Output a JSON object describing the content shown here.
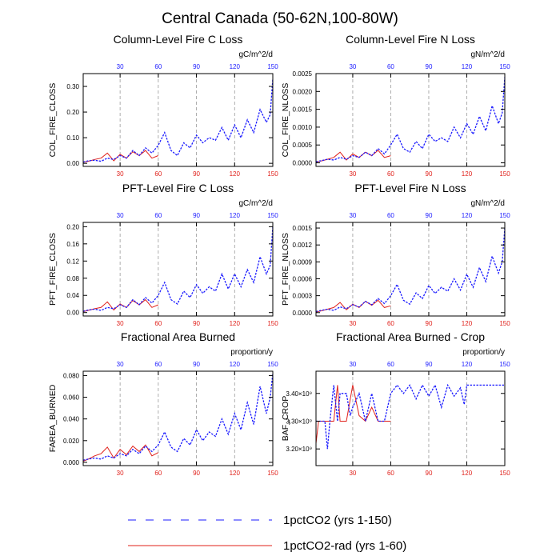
{
  "page": {
    "title": "Central Canada (50-62N,100-80W)"
  },
  "legend": [
    {
      "label": "1pctCO2 (yrs 1-150)",
      "color": "#1a1aff",
      "dash": "dashed"
    },
    {
      "label": "1pctCO2-rad (yrs 1-60)",
      "color": "#e0201a",
      "dash": "solid"
    }
  ],
  "chart_data": [
    {
      "type": "line",
      "title": "Column-Level Fire C Loss",
      "ylabel": "COL_FIRE_CLOSS",
      "units": "gC/m^2/d",
      "xlim": [
        1,
        150
      ],
      "xticks": [
        30,
        60,
        90,
        120,
        150
      ],
      "ylim": [
        -0.012,
        0.35
      ],
      "yticks": [
        0.0,
        0.1,
        0.2,
        0.3
      ],
      "ytick_labels": [
        "0.00",
        "0.10",
        "0.20",
        "0.30"
      ],
      "series": [
        {
          "name": "1pctCO2 (yrs 1-150)",
          "color": "#1a1aff",
          "line": "dashed",
          "x": [
            1,
            5,
            10,
            15,
            20,
            25,
            30,
            35,
            40,
            45,
            50,
            55,
            60,
            65,
            70,
            75,
            80,
            85,
            90,
            95,
            100,
            105,
            110,
            115,
            120,
            125,
            130,
            135,
            140,
            145,
            148,
            150
          ],
          "y": [
            0.005,
            0.01,
            0.012,
            0.008,
            0.02,
            0.015,
            0.03,
            0.02,
            0.05,
            0.03,
            0.06,
            0.04,
            0.07,
            0.12,
            0.05,
            0.03,
            0.08,
            0.06,
            0.11,
            0.08,
            0.1,
            0.09,
            0.14,
            0.09,
            0.15,
            0.1,
            0.17,
            0.12,
            0.21,
            0.16,
            0.19,
            0.33
          ]
        },
        {
          "name": "1pctCO2-rad (yrs 1-60)",
          "color": "#e0201a",
          "line": "solid",
          "x": [
            1,
            5,
            10,
            15,
            20,
            25,
            30,
            35,
            40,
            45,
            50,
            55,
            60
          ],
          "y": [
            0.004,
            0.008,
            0.015,
            0.02,
            0.04,
            0.01,
            0.035,
            0.02,
            0.045,
            0.03,
            0.05,
            0.02,
            0.03
          ]
        }
      ]
    },
    {
      "type": "line",
      "title": "Column-Level Fire N Loss",
      "ylabel": "COL_FIRE_NLOSS",
      "units": "gN/m^2/d",
      "xlim": [
        1,
        150
      ],
      "xticks": [
        30,
        60,
        90,
        120,
        150
      ],
      "ylim": [
        -0.0001,
        0.0025
      ],
      "yticks": [
        0.0,
        0.0005,
        0.001,
        0.0015,
        0.002,
        0.0025
      ],
      "ytick_labels": [
        "0.0000",
        "0.0005",
        "0.0010",
        "0.0015",
        "0.0020",
        "0.0025"
      ],
      "series": [
        {
          "name": "1pctCO2 (yrs 1-150)",
          "color": "#1a1aff",
          "line": "dashed",
          "x": [
            1,
            5,
            10,
            15,
            20,
            25,
            30,
            35,
            40,
            45,
            50,
            55,
            60,
            65,
            70,
            75,
            80,
            85,
            90,
            95,
            100,
            105,
            110,
            115,
            120,
            125,
            130,
            135,
            140,
            145,
            148,
            150
          ],
          "y": [
            3e-05,
            6e-05,
            0.0001,
            8e-05,
            0.00015,
            0.0001,
            0.0002,
            0.00015,
            0.0003,
            0.0002,
            0.0004,
            0.00025,
            0.0005,
            0.0008,
            0.0004,
            0.0003,
            0.0006,
            0.0004,
            0.0008,
            0.0006,
            0.0007,
            0.0006,
            0.001,
            0.0007,
            0.0011,
            0.0008,
            0.0013,
            0.0009,
            0.0016,
            0.0011,
            0.0014,
            0.0024
          ]
        },
        {
          "name": "1pctCO2-rad (yrs 1-60)",
          "color": "#e0201a",
          "line": "solid",
          "x": [
            1,
            5,
            10,
            15,
            20,
            25,
            30,
            35,
            40,
            45,
            50,
            55,
            60
          ],
          "y": [
            2e-05,
            5e-05,
            0.0001,
            0.00015,
            0.0003,
            8e-05,
            0.00025,
            0.00015,
            0.0003,
            0.0002,
            0.00035,
            0.00015,
            0.0002
          ]
        }
      ]
    },
    {
      "type": "line",
      "title": "PFT-Level Fire C Loss",
      "ylabel": "PFT_FIRE_CLOSS",
      "units": "gC/m^2/d",
      "xlim": [
        1,
        150
      ],
      "xticks": [
        30,
        60,
        90,
        120,
        150
      ],
      "ylim": [
        -0.008,
        0.21
      ],
      "yticks": [
        0.0,
        0.04,
        0.08,
        0.12,
        0.16,
        0.2
      ],
      "ytick_labels": [
        "0.00",
        "0.04",
        "0.08",
        "0.12",
        "0.16",
        "0.20"
      ],
      "series": [
        {
          "name": "1pctCO2 (yrs 1-150)",
          "color": "#1a1aff",
          "line": "dashed",
          "x": [
            1,
            5,
            10,
            15,
            20,
            25,
            30,
            35,
            40,
            45,
            50,
            55,
            60,
            65,
            70,
            75,
            80,
            85,
            90,
            95,
            100,
            105,
            110,
            115,
            120,
            125,
            130,
            135,
            140,
            145,
            148,
            150
          ],
          "y": [
            0.003,
            0.006,
            0.008,
            0.005,
            0.012,
            0.009,
            0.018,
            0.012,
            0.03,
            0.018,
            0.035,
            0.022,
            0.04,
            0.07,
            0.03,
            0.02,
            0.05,
            0.035,
            0.065,
            0.045,
            0.06,
            0.05,
            0.09,
            0.055,
            0.09,
            0.06,
            0.1,
            0.07,
            0.13,
            0.09,
            0.11,
            0.2
          ]
        },
        {
          "name": "1pctCO2-rad (yrs 1-60)",
          "color": "#e0201a",
          "line": "solid",
          "x": [
            1,
            5,
            10,
            15,
            20,
            25,
            30,
            35,
            40,
            45,
            50,
            55,
            60
          ],
          "y": [
            0.002,
            0.005,
            0.009,
            0.012,
            0.025,
            0.006,
            0.02,
            0.012,
            0.028,
            0.018,
            0.03,
            0.012,
            0.018
          ]
        }
      ]
    },
    {
      "type": "line",
      "title": "PFT-Level Fire N Loss",
      "ylabel": "PFT_FIRE_NLOSS",
      "units": "gN/m^2/d",
      "xlim": [
        1,
        150
      ],
      "xticks": [
        30,
        60,
        90,
        120,
        150
      ],
      "ylim": [
        -6e-05,
        0.0016
      ],
      "yticks": [
        0.0,
        0.0003,
        0.0006,
        0.0009,
        0.0012,
        0.0015
      ],
      "ytick_labels": [
        "0.0000",
        "0.0003",
        "0.0006",
        "0.0009",
        "0.0012",
        "0.0015"
      ],
      "series": [
        {
          "name": "1pctCO2 (yrs 1-150)",
          "color": "#1a1aff",
          "line": "dashed",
          "x": [
            1,
            5,
            10,
            15,
            20,
            25,
            30,
            35,
            40,
            45,
            50,
            55,
            60,
            65,
            70,
            75,
            80,
            85,
            90,
            95,
            100,
            105,
            110,
            115,
            120,
            125,
            130,
            135,
            140,
            145,
            148,
            150
          ],
          "y": [
            2e-05,
            4e-05,
            6e-05,
            4e-05,
            0.0001,
            7e-05,
            0.00014,
            0.0001,
            0.0002,
            0.00014,
            0.00025,
            0.00016,
            0.0003,
            0.0005,
            0.00022,
            0.00015,
            0.00035,
            0.00025,
            0.00048,
            0.00034,
            0.00045,
            0.00038,
            0.0006,
            0.0004,
            0.00068,
            0.00045,
            0.0008,
            0.00055,
            0.001,
            0.0007,
            0.0009,
            0.0015
          ]
        },
        {
          "name": "1pctCO2-rad (yrs 1-60)",
          "color": "#e0201a",
          "line": "solid",
          "x": [
            1,
            5,
            10,
            15,
            20,
            25,
            30,
            35,
            40,
            45,
            50,
            55,
            60
          ],
          "y": [
            1e-05,
            3e-05,
            6e-05,
            9e-05,
            0.00018,
            5e-05,
            0.00015,
            9e-05,
            0.0002,
            0.00013,
            0.00022,
            9e-05,
            0.00012
          ]
        }
      ]
    },
    {
      "type": "line",
      "title": "Fractional Area Burned",
      "ylabel": "FAREA_BURNED",
      "units": "proportion/y",
      "xlim": [
        1,
        150
      ],
      "xticks": [
        30,
        60,
        90,
        120,
        150
      ],
      "ylim": [
        -0.003,
        0.084
      ],
      "yticks": [
        0.0,
        0.02,
        0.04,
        0.06,
        0.08
      ],
      "ytick_labels": [
        "0.000",
        "0.020",
        "0.040",
        "0.060",
        "0.080"
      ],
      "series": [
        {
          "name": "1pctCO2 (yrs 1-150)",
          "color": "#1a1aff",
          "line": "dashed",
          "x": [
            1,
            5,
            10,
            15,
            20,
            25,
            30,
            35,
            40,
            45,
            50,
            55,
            60,
            65,
            70,
            75,
            80,
            85,
            90,
            95,
            100,
            105,
            110,
            115,
            120,
            125,
            130,
            135,
            140,
            145,
            148,
            150
          ],
          "y": [
            0.002,
            0.003,
            0.004,
            0.003,
            0.006,
            0.004,
            0.008,
            0.006,
            0.012,
            0.008,
            0.015,
            0.01,
            0.016,
            0.028,
            0.014,
            0.01,
            0.022,
            0.016,
            0.03,
            0.02,
            0.028,
            0.024,
            0.04,
            0.026,
            0.045,
            0.03,
            0.055,
            0.035,
            0.07,
            0.045,
            0.06,
            0.082
          ]
        },
        {
          "name": "1pctCO2-rad (yrs 1-60)",
          "color": "#e0201a",
          "line": "solid",
          "x": [
            1,
            5,
            10,
            15,
            20,
            25,
            30,
            35,
            40,
            45,
            50,
            55,
            60
          ],
          "y": [
            0.001,
            0.003,
            0.006,
            0.008,
            0.014,
            0.004,
            0.012,
            0.007,
            0.015,
            0.01,
            0.016,
            0.006,
            0.009
          ]
        }
      ]
    },
    {
      "type": "line",
      "title": "Fractional Area Burned - Crop",
      "ylabel": "BAF_CROP",
      "units": "proportion/y",
      "xlim": [
        1,
        150
      ],
      "xticks": [
        30,
        60,
        90,
        120,
        150
      ],
      "ylim": [
        3140000000.0,
        3480000000.0
      ],
      "yticks": [
        3200000000.0,
        3300000000.0,
        3400000000.0
      ],
      "ytick_labels": [
        "3.20×10⁹",
        "3.30×10⁹",
        "3.40×10⁹"
      ],
      "series": [
        {
          "name": "1pctCO2 (yrs 1-150)",
          "color": "#1a1aff",
          "line": "dashed",
          "x": [
            1,
            5,
            8,
            10,
            12,
            15,
            18,
            20,
            25,
            28,
            30,
            35,
            40,
            45,
            50,
            55,
            60,
            65,
            70,
            75,
            80,
            85,
            90,
            95,
            100,
            105,
            110,
            115,
            118,
            120,
            125,
            130,
            140,
            150
          ],
          "y": [
            3300000000.0,
            3300000000.0,
            3300000000.0,
            3200000000.0,
            3300000000.0,
            3430000000.0,
            3300000000.0,
            3400000000.0,
            3400000000.0,
            3320000000.0,
            3350000000.0,
            3400000000.0,
            3300000000.0,
            3400000000.0,
            3300000000.0,
            3300000000.0,
            3400000000.0,
            3430000000.0,
            3400000000.0,
            3430000000.0,
            3380000000.0,
            3430000000.0,
            3390000000.0,
            3430000000.0,
            3350000000.0,
            3430000000.0,
            3390000000.0,
            3420000000.0,
            3360000000.0,
            3430000000.0,
            3430000000.0,
            3430000000.0,
            3430000000.0,
            3430000000.0
          ]
        },
        {
          "name": "1pctCO2-rad (yrs 1-60)",
          "color": "#e0201a",
          "line": "solid",
          "x": [
            1,
            3,
            5,
            10,
            15,
            18,
            20,
            25,
            30,
            35,
            40,
            45,
            50,
            55,
            60
          ],
          "y": [
            3220000000.0,
            3300000000.0,
            3300000000.0,
            3300000000.0,
            3300000000.0,
            3430000000.0,
            3300000000.0,
            3300000000.0,
            3430000000.0,
            3320000000.0,
            3300000000.0,
            3350000000.0,
            3300000000.0,
            3300000000.0,
            3300000000.0
          ]
        }
      ]
    }
  ]
}
